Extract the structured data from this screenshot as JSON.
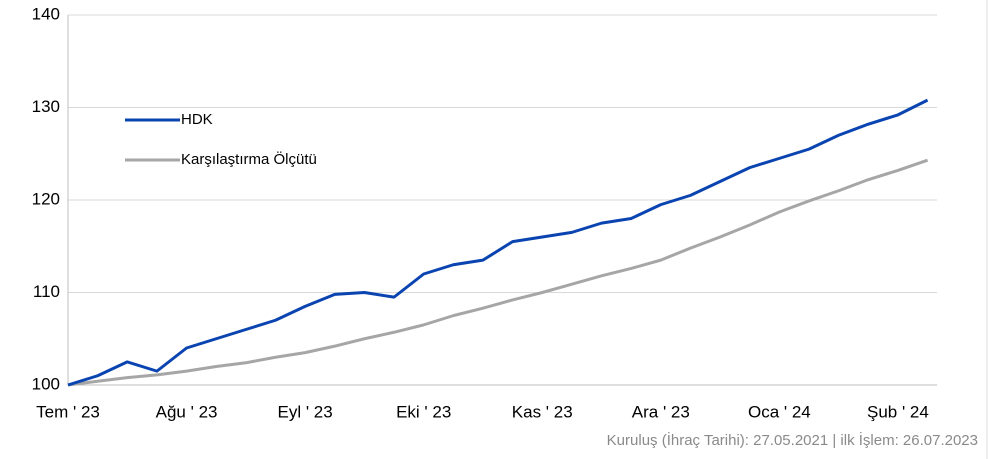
{
  "chart_data": {
    "type": "line",
    "categories": [
      "Tem ' 23",
      null,
      null,
      null,
      "Ağu ' 23",
      null,
      null,
      null,
      "Eyl ' 23",
      null,
      null,
      null,
      "Eki ' 23",
      null,
      null,
      null,
      "Kas ' 23",
      null,
      null,
      null,
      "Ara ' 23",
      null,
      null,
      null,
      "Oca ' 24",
      null,
      null,
      null,
      "Şub ' 24",
      null
    ],
    "series": [
      {
        "name": "HDK",
        "color": "#0a44b0",
        "values": [
          100,
          101,
          102.5,
          101.5,
          104,
          105,
          106,
          107,
          108.5,
          109.8,
          110,
          109.5,
          112,
          113,
          113.5,
          115.5,
          116,
          116.5,
          117.5,
          118,
          119.5,
          120.5,
          122,
          123.5,
          124.5,
          125.5,
          127,
          128.2,
          129.2,
          130.8
        ]
      },
      {
        "name": "Karşılaştırma Ölçütü",
        "color": "#a6a6a6",
        "values": [
          100,
          100.4,
          100.8,
          101.1,
          101.5,
          102,
          102.4,
          103,
          103.5,
          104.2,
          105,
          105.7,
          106.5,
          107.5,
          108.3,
          109.2,
          110,
          110.9,
          111.8,
          112.6,
          113.5,
          114.8,
          116,
          117.3,
          118.7,
          119.9,
          121,
          122.2,
          123.2,
          124.3
        ]
      }
    ],
    "ylim": [
      100,
      140
    ],
    "yticks": [
      100,
      110,
      120,
      130,
      140
    ],
    "grid": true,
    "legend": "upper left",
    "annotations": [
      "Kuruluş (İhraç Tarihi): 27.05.2021 | ilk İşlem: 26.07.2023"
    ]
  }
}
